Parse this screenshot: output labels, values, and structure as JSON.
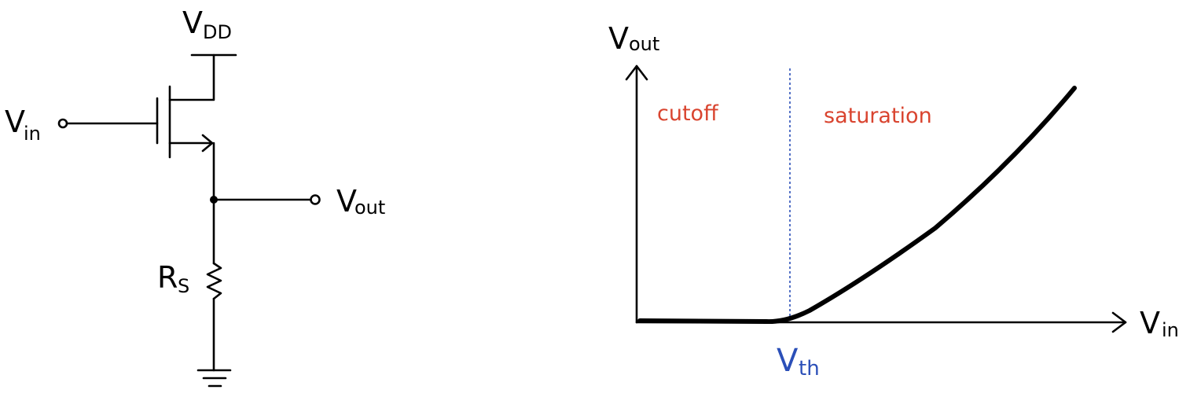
{
  "circuit": {
    "vdd": {
      "main": "V",
      "sub": "DD"
    },
    "vin": {
      "main": "V",
      "sub": "in"
    },
    "vout": {
      "main": "V",
      "sub": "out"
    },
    "rs": {
      "main": "R",
      "sub": "S"
    }
  },
  "graph": {
    "y_axis_label": {
      "main": "V",
      "sub": "out"
    },
    "x_axis_label": {
      "main": "V",
      "sub": "in"
    },
    "threshold_label": {
      "main": "V",
      "sub": "th"
    },
    "region_left": "cutoff",
    "region_right": "saturation"
  },
  "colors": {
    "ink": "#000000",
    "region_text": "#d9442f",
    "threshold": "#2b4fb8"
  }
}
